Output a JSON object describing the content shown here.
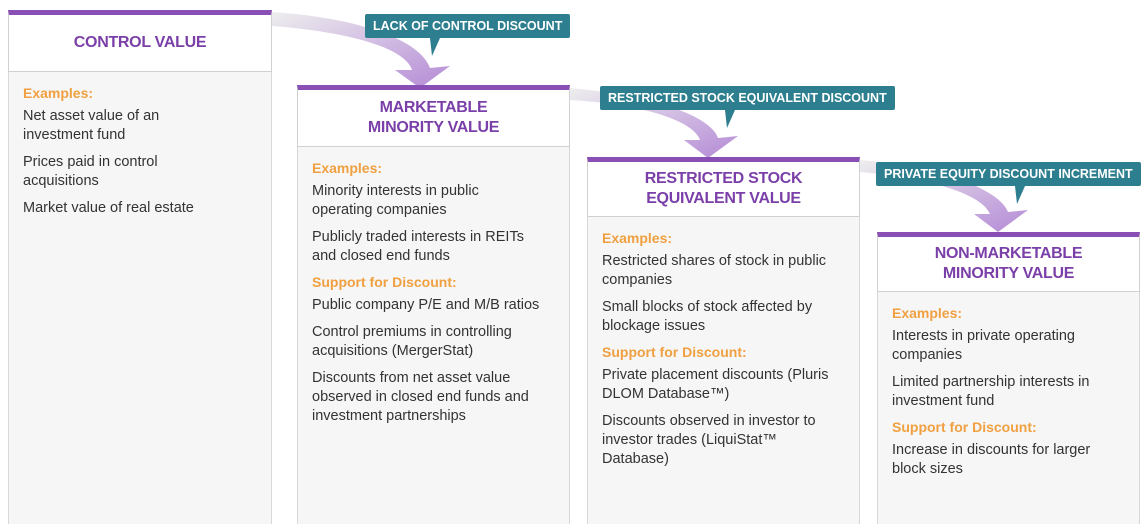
{
  "discounts": [
    "LACK OF CONTROL DISCOUNT",
    "RESTRICTED STOCK EQUIVALENT DISCOUNT",
    "PRIVATE EQUITY DISCOUNT INCREMENT"
  ],
  "columns": [
    {
      "title": [
        "CONTROL VALUE"
      ],
      "sections": [
        {
          "heading": "Examples:",
          "items": [
            "Net asset value of an investment fund",
            "Prices paid in control acquisitions",
            "Market value of real estate"
          ]
        }
      ]
    },
    {
      "title": [
        "MARKETABLE",
        "MINORITY VALUE"
      ],
      "sections": [
        {
          "heading": "Examples:",
          "items": [
            "Minority interests in public operating companies",
            "Publicly traded interests in REITs and closed end funds"
          ]
        },
        {
          "heading": "Support for Discount:",
          "items": [
            "Public company P/E and M/B ratios",
            "Control premiums in controlling acquisitions (MergerStat)",
            "Discounts from net asset value observed in closed end funds and investment partnerships"
          ]
        }
      ]
    },
    {
      "title": [
        "RESTRICTED STOCK",
        "EQUIVALENT VALUE"
      ],
      "sections": [
        {
          "heading": "Examples:",
          "items": [
            "Restricted shares of stock in public companies",
            "Small blocks of stock affected by blockage issues"
          ]
        },
        {
          "heading": "Support for Discount:",
          "items": [
            "Private placement discounts (Pluris DLOM Database™)",
            "Discounts observed in investor to investor trades (LiquiStat™ Database)"
          ]
        }
      ]
    },
    {
      "title": [
        "NON-MARKETABLE",
        "MINORITY VALUE"
      ],
      "sections": [
        {
          "heading": "Examples:",
          "items": [
            "Interests in private operating companies",
            "Limited partnership interests in investment fund"
          ]
        },
        {
          "heading": "Support for Discount:",
          "items": [
            "Increase in discounts for larger block sizes"
          ]
        }
      ]
    }
  ]
}
